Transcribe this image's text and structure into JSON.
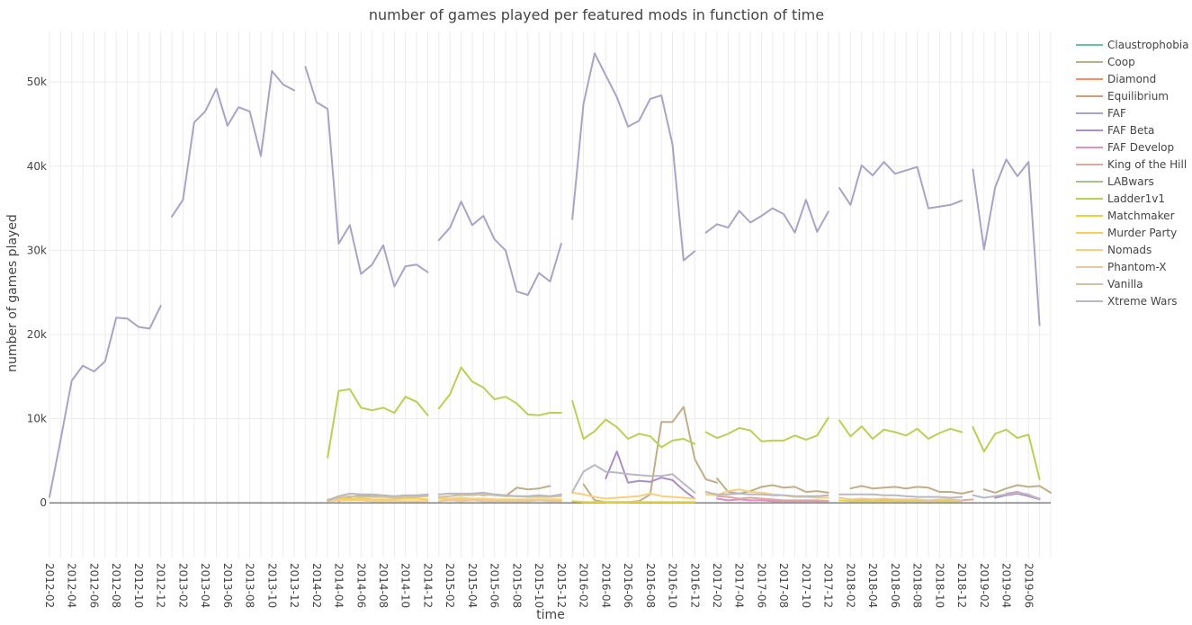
{
  "chart_data": {
    "type": "line",
    "title": "number of games played per featured mods in function of time",
    "xlabel": "time",
    "ylabel": "number of games played",
    "ylim": [
      -6500,
      56000
    ],
    "yticks": [
      0,
      10000,
      20000,
      30000,
      40000,
      50000
    ],
    "ytick_labels": [
      "0",
      "10k",
      "20k",
      "30k",
      "40k",
      "50k"
    ],
    "x_start": "2012-02",
    "x_end": "2019-08",
    "xtick_labels": [
      "2012-02",
      "2012-04",
      "2012-06",
      "2012-08",
      "2012-10",
      "2012-12",
      "2013-02",
      "2013-04",
      "2013-06",
      "2013-08",
      "2013-10",
      "2013-12",
      "2014-02",
      "2014-04",
      "2014-06",
      "2014-08",
      "2014-10",
      "2014-12",
      "2015-02",
      "2015-04",
      "2015-06",
      "2015-08",
      "2015-10",
      "2015-12",
      "2016-02",
      "2016-04",
      "2016-06",
      "2016-08",
      "2016-10",
      "2016-12",
      "2017-02",
      "2017-04",
      "2017-06",
      "2017-08",
      "2017-10",
      "2017-12",
      "2018-02",
      "2018-04",
      "2018-06",
      "2018-08",
      "2018-10",
      "2018-12",
      "2019-02",
      "2019-04",
      "2019-06"
    ],
    "legend_position": "right",
    "series": [
      {
        "name": "Claustrophobia",
        "color": "#66c2a5",
        "segments": []
      },
      {
        "name": "Coop",
        "color": "#bfae89",
        "segments": [
          {
            "start": "2014-04",
            "values": [
              200,
              700,
              900,
              800,
              900,
              600,
              700,
              800,
              900
            ]
          },
          {
            "start": "2015-02",
            "values": [
              800,
              1000,
              1100,
              900,
              1000,
              800,
              1800,
              1600,
              1700,
              2000
            ]
          },
          {
            "start": "2016-02",
            "values": [
              2200,
              300,
              100,
              100,
              100,
              200,
              1000,
              9600,
              9600,
              11400,
              5200,
              2800,
              2400
            ]
          },
          {
            "start": "2017-02",
            "values": [
              2900,
              1300,
              1100,
              1400,
              1900,
              2100,
              1800,
              1900,
              1300,
              1400,
              1200
            ]
          },
          {
            "start": "2018-02",
            "values": [
              1700,
              2000,
              1700,
              1800,
              1900,
              1700,
              1900,
              1800,
              1300,
              1300,
              1100,
              1400
            ]
          },
          {
            "start": "2019-02",
            "values": [
              1600,
              1200,
              1700,
              2100,
              1900,
              2000,
              1200
            ]
          }
        ]
      },
      {
        "name": "Diamond",
        "color": "#fc8d62",
        "segments": []
      },
      {
        "name": "Equilibrium",
        "color": "#d29d7b",
        "segments": []
      },
      {
        "name": "FAF",
        "color": "#a9a4c6",
        "segments": [
          {
            "start": "2012-02",
            "values": [
              700,
              7500,
              14500,
              16300,
              15600,
              16800,
              22000,
              21900,
              20900,
              20700,
              23400
            ]
          },
          {
            "start": "2013-01",
            "values": [
              34000,
              36000,
              45200,
              46500,
              49200,
              44800,
              47000,
              46500,
              41200,
              51300,
              49700,
              49000
            ]
          },
          {
            "start": "2014-01",
            "values": [
              51800,
              47600,
              46800,
              30800,
              33000,
              27200,
              28300,
              30600,
              25700,
              28100,
              28300,
              27400
            ]
          },
          {
            "start": "2015-01",
            "values": [
              31200,
              32700,
              35800,
              33000,
              34100,
              31300,
              30000,
              25100,
              24700,
              27300,
              26300,
              30800
            ]
          },
          {
            "start": "2016-01",
            "values": [
              33700,
              47400,
              53400,
              50800,
              48200,
              44700,
              45400,
              48000,
              48400,
              42600,
              28800,
              29900
            ]
          },
          {
            "start": "2017-01",
            "values": [
              32100,
              33100,
              32700,
              34700,
              33300,
              34100,
              35000,
              34300,
              32100,
              36000,
              32200,
              34600
            ]
          },
          {
            "start": "2018-01",
            "values": [
              37400,
              35400,
              40100,
              38900,
              40500,
              39100,
              39500,
              39900,
              35000,
              35200,
              35400,
              35900
            ]
          },
          {
            "start": "2019-01",
            "values": [
              39600,
              30100,
              37500,
              40800,
              38800,
              40500,
              21100
            ]
          }
        ]
      },
      {
        "name": "FAF Beta",
        "color": "#a98fc4",
        "segments": [
          {
            "start": "2016-04",
            "values": [
              2900,
              6100,
              2400,
              2600,
              2500,
              3000,
              2700,
              1500,
              500
            ]
          },
          {
            "start": "2019-03",
            "values": [
              600,
              900,
              1100,
              800,
              400
            ]
          }
        ]
      },
      {
        "name": "FAF Develop",
        "color": "#e08fc6",
        "segments": [
          {
            "start": "2017-02",
            "values": [
              500,
              300,
              400,
              300,
              300,
              200,
              200,
              200,
              200,
              200,
              200
            ]
          },
          {
            "start": "2019-04",
            "values": [
              1100,
              1300,
              900,
              500
            ]
          }
        ]
      },
      {
        "name": "King of the Hill",
        "color": "#e0a6a2",
        "segments": [
          {
            "start": "2017-02",
            "values": [
              800,
              700,
              500,
              600,
              500,
              400,
              300,
              300,
              300,
              300,
              200
            ]
          },
          {
            "start": "2018-02",
            "values": [
              400,
              300,
              400,
              300,
              300,
              400,
              300,
              300,
              300,
              300,
              300,
              400
            ]
          }
        ]
      },
      {
        "name": "LABwars",
        "color": "#a6c38a",
        "segments": []
      },
      {
        "name": "Ladder1v1",
        "color": "#b8d154",
        "segments": [
          {
            "start": "2014-03",
            "values": [
              5400,
              13300,
              13500,
              11300,
              11000,
              11300,
              10700,
              12600,
              12000,
              10400
            ]
          },
          {
            "start": "2015-01",
            "values": [
              11200,
              12900,
              16100,
              14400,
              13700,
              12300,
              12600,
              11800,
              10500,
              10400,
              10700,
              10700
            ]
          },
          {
            "start": "2016-01",
            "values": [
              12100,
              7600,
              8500,
              9900,
              9000,
              7600,
              8200,
              7900,
              6600,
              7400,
              7600,
              7000
            ]
          },
          {
            "start": "2017-01",
            "values": [
              8400,
              7700,
              8200,
              8900,
              8600,
              7300,
              7400,
              7400,
              8000,
              7500,
              8000,
              10100
            ]
          },
          {
            "start": "2018-01",
            "values": [
              9800,
              7900,
              9100,
              7600,
              8700,
              8400,
              8000,
              8800,
              7600,
              8300,
              8800,
              8400
            ]
          },
          {
            "start": "2019-01",
            "values": [
              9000,
              6100,
              8200,
              8700,
              7700,
              8100,
              2800
            ]
          }
        ]
      },
      {
        "name": "Matchmaker",
        "color": "#e3d53a",
        "segments": [
          {
            "start": "2016-01",
            "values": [
              200,
              100,
              100,
              100,
              100,
              100,
              100,
              100,
              100,
              100,
              100,
              100
            ]
          },
          {
            "start": "2018-01",
            "values": [
              300,
              200,
              200,
              200,
              200,
              200,
              200,
              200,
              200,
              200,
              200,
              200
            ]
          }
        ]
      },
      {
        "name": "Murder Party",
        "color": "#f2d15b",
        "segments": [
          {
            "start": "2014-03",
            "values": [
              400,
              500,
              500,
              500,
              400,
              400,
              400,
              500,
              500,
              400
            ]
          },
          {
            "start": "2015-01",
            "values": [
              500,
              400,
              400,
              400,
              400,
              400,
              400,
              400,
              400,
              400,
              400,
              400
            ]
          }
        ]
      },
      {
        "name": "Nomads",
        "color": "#f7cf7d",
        "segments": [
          {
            "start": "2014-03",
            "values": [
              200,
              300,
              300,
              300,
              200,
              200,
              200,
              200,
              200,
              200
            ]
          },
          {
            "start": "2015-01",
            "values": [
              700,
              500,
              600,
              500,
              500,
              400,
              300,
              300,
              200,
              300,
              300,
              300
            ]
          },
          {
            "start": "2016-01",
            "values": [
              1200,
              1000,
              700,
              500,
              600,
              700,
              800,
              1100,
              800,
              700,
              600,
              500
            ]
          },
          {
            "start": "2017-01",
            "values": [
              1000,
              900,
              1400,
              1600,
              1300,
              1200,
              1000,
              900,
              700,
              700,
              600,
              600
            ]
          }
        ]
      },
      {
        "name": "Phantom-X",
        "color": "#e9c89c",
        "segments": [
          {
            "start": "2015-01",
            "values": [
              200,
              300,
              200,
              300,
              200,
              200,
              200,
              200,
              200,
              300,
              200,
              200
            ]
          },
          {
            "start": "2018-01",
            "values": [
              600,
              400,
              500,
              400,
              500,
              400,
              400,
              400,
              300,
              400,
              400,
              300
            ]
          }
        ]
      },
      {
        "name": "Vanilla",
        "color": "#d4c2a4",
        "segments": [
          {
            "start": "2014-03",
            "values": [
              300,
              600,
              800,
              700,
              700,
              700,
              600,
              700,
              700,
              800
            ]
          },
          {
            "start": "2015-01",
            "values": [
              700,
              800,
              900,
              900,
              1000,
              900,
              800,
              800,
              700,
              700,
              700,
              800
            ]
          }
        ]
      },
      {
        "name": "Xtreme Wars",
        "color": "#b9b9c4",
        "segments": [
          {
            "start": "2014-03",
            "values": [
              300,
              800,
              1100,
              1000,
              1000,
              900,
              800,
              900,
              900,
              1000
            ]
          },
          {
            "start": "2015-01",
            "values": [
              1000,
              1100,
              1100,
              1100,
              1200,
              1000,
              900,
              800,
              800,
              900,
              800,
              1000
            ]
          },
          {
            "start": "2016-01",
            "values": [
              1300,
              3700,
              4500,
              3700,
              3600,
              3400,
              3300,
              3200,
              3200,
              3400,
              2300,
              1200
            ]
          },
          {
            "start": "2017-01",
            "values": [
              1300,
              1000,
              1000,
              1100,
              1000,
              1000,
              900,
              900,
              800,
              800,
              800,
              900
            ]
          },
          {
            "start": "2018-01",
            "values": [
              1000,
              1000,
              1000,
              1000,
              900,
              900,
              800,
              700,
              700,
              700,
              600,
              700
            ]
          },
          {
            "start": "2019-01",
            "values": [
              900,
              600,
              800,
              1000,
              1200,
              1000,
              400
            ]
          }
        ]
      }
    ]
  }
}
